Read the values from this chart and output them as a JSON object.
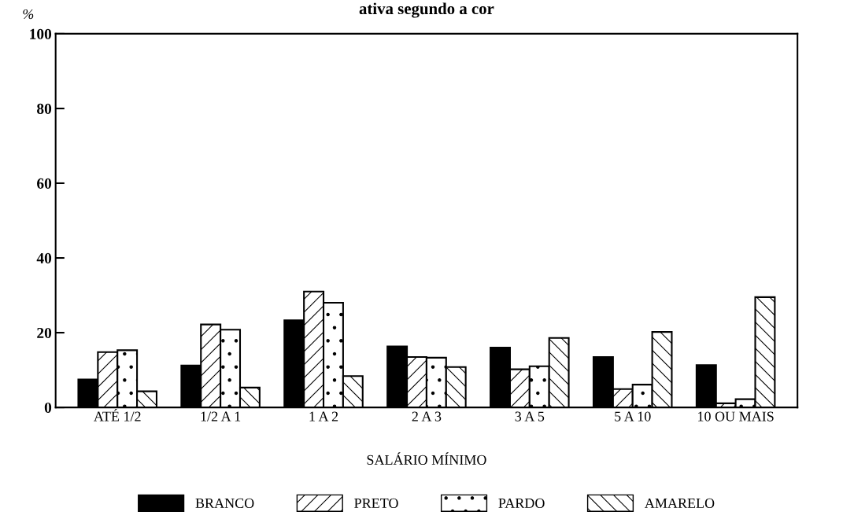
{
  "chart_data": {
    "type": "bar",
    "title": "ativa segundo a cor",
    "xlabel": "SALÁRIO MÍNIMO",
    "ylabel": "%",
    "categories": [
      "ATÉ 1/2",
      "1/2 A 1",
      "1 A 2",
      "2 A 3",
      "3 A 5",
      "5 A 10",
      "10 OU MAIS"
    ],
    "series": [
      {
        "name": "BRANCO",
        "color": "#000000",
        "values": [
          7.5,
          11.2,
          23.3,
          16.3,
          16.0,
          13.5,
          11.3
        ]
      },
      {
        "name": "PRETO",
        "color": "#ffffff",
        "values": [
          14.8,
          22.2,
          31.0,
          13.5,
          10.2,
          4.9,
          1.1
        ]
      },
      {
        "name": "PARDO",
        "color": "#ffffff",
        "values": [
          15.3,
          20.8,
          28.0,
          13.3,
          11.0,
          6.1,
          2.2
        ]
      },
      {
        "name": "AMARELO",
        "color": "#ffffff",
        "values": [
          4.3,
          5.3,
          8.4,
          10.8,
          18.6,
          20.2,
          29.5
        ]
      }
    ],
    "ylim": [
      0,
      100
    ],
    "yticks": [
      0,
      20,
      40,
      60,
      80,
      100
    ],
    "grid": false,
    "legend": "bottom"
  }
}
